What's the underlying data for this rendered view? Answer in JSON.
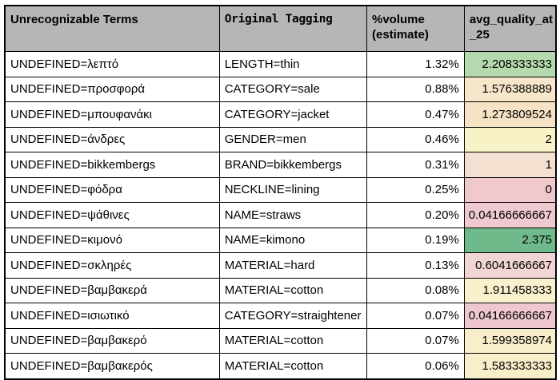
{
  "header": {
    "col1": "Unrecognizable Terms",
    "col2": "Original Tagging",
    "col3_line1": "%volume",
    "col3_line2": "(estimate)",
    "col4_line1": "avg_quality_at",
    "col4_line2": "_25"
  },
  "colors": {
    "header_bg": "#b6b6b6",
    "grid_border": "#000000",
    "quality_scale_max_green": "#6eba8b",
    "quality_scale_mid_yellow": "#f8f1c8",
    "quality_scale_min_pink": "#efc9cd"
  },
  "table": {
    "rows": [
      {
        "term": "UNDEFINED=λεπτό",
        "tag": "LENGTH=thin",
        "volume": "1.32%",
        "quality": "2.208333333",
        "quality_bg": "#b3d9ac"
      },
      {
        "term": "UNDEFINED=προσφορά",
        "tag": "CATEGORY=sale",
        "volume": "0.88%",
        "quality": "1.576388889",
        "quality_bg": "#f7e7ca"
      },
      {
        "term": "UNDEFINED=μπουφανάκι",
        "tag": "CATEGORY=jacket",
        "volume": "0.47%",
        "quality": "1.273809524",
        "quality_bg": "#f6e2c5"
      },
      {
        "term": "UNDEFINED=άνδρες",
        "tag": "GENDER=men",
        "volume": "0.46%",
        "quality": "2",
        "quality_bg": "#f8f2c7"
      },
      {
        "term": "UNDEFINED=bikkembergs",
        "tag": "BRAND=bikkembergs",
        "volume": "0.31%",
        "quality": "1",
        "quality_bg": "#f4e0d0"
      },
      {
        "term": "UNDEFINED=φόδρα",
        "tag": "NECKLINE=lining",
        "volume": "0.25%",
        "quality": "0",
        "quality_bg": "#f0c9cd"
      },
      {
        "term": "UNDEFINED=ψάθινες",
        "tag": "NAME=straws",
        "volume": "0.20%",
        "quality": "0.04166666667",
        "quality_bg": "#eec9cf"
      },
      {
        "term": "UNDEFINED=κιμονό",
        "tag": "NAME=kimono",
        "volume": "0.19%",
        "quality": "2.375",
        "quality_bg": "#6eba8b"
      },
      {
        "term": "UNDEFINED=σκληρές",
        "tag": "MATERIAL=hard",
        "volume": "0.13%",
        "quality": "0.6041666667",
        "quality_bg": "#f1d5d4"
      },
      {
        "term": "UNDEFINED=βαμβακερά",
        "tag": "MATERIAL=cotton",
        "volume": "0.08%",
        "quality": "1.911458333",
        "quality_bg": "#f9f1cd"
      },
      {
        "term": "UNDEFINED=ισιωτικό",
        "tag": "CATEGORY=straightener",
        "volume": "0.07%",
        "quality": "0.04166666667",
        "quality_bg": "#eec8ce"
      },
      {
        "term": "UNDEFINED=βαμβακερό",
        "tag": "MATERIAL=cotton",
        "volume": "0.07%",
        "quality": "1.599358974",
        "quality_bg": "#f9eeca"
      },
      {
        "term": "UNDEFINED=βαμβακερός",
        "tag": "MATERIAL=cotton",
        "volume": "0.06%",
        "quality": "1.583333333",
        "quality_bg": "#f9eeca"
      }
    ]
  }
}
